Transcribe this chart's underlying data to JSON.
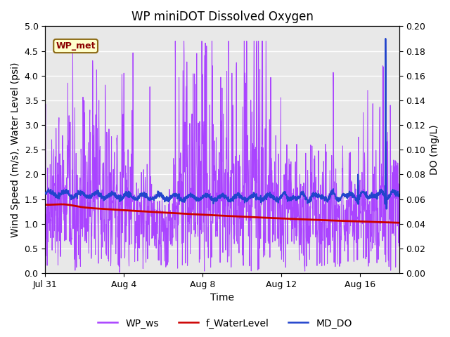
{
  "title": "WP miniDOT Dissolved Oxygen",
  "xlabel": "Time",
  "ylabel_left": "Wind Speed (m/s), Water Level (psi)",
  "ylabel_right": "DO (mg/L)",
  "ylim_left": [
    0.0,
    5.0
  ],
  "ylim_right": [
    0.0,
    0.2
  ],
  "yticks_left": [
    0.0,
    0.5,
    1.0,
    1.5,
    2.0,
    2.5,
    3.0,
    3.5,
    4.0,
    4.5,
    5.0
  ],
  "yticks_right": [
    0.0,
    0.02,
    0.04,
    0.06,
    0.08,
    0.1,
    0.12,
    0.14,
    0.16,
    0.18,
    0.2
  ],
  "xtick_positions": [
    0,
    4,
    8,
    12,
    16
  ],
  "xtick_labels": [
    "Jul 31",
    "Aug 4",
    "Aug 8",
    "Aug 12",
    "Aug 16"
  ],
  "wp_ws_color": "#AA44FF",
  "f_waterlevel_color": "#CC0000",
  "md_do_color": "#2244CC",
  "legend_labels": [
    "WP_ws",
    "f_WaterLevel",
    "MD_DO"
  ],
  "annotation_text": "WP_met",
  "annotation_color": "#8B0000",
  "annotation_bg": "#FFFFCC",
  "annotation_border": "#8B6914",
  "bg_color": "#E8E8E8",
  "title_fontsize": 12,
  "axis_fontsize": 10,
  "tick_fontsize": 9,
  "legend_fontsize": 10
}
